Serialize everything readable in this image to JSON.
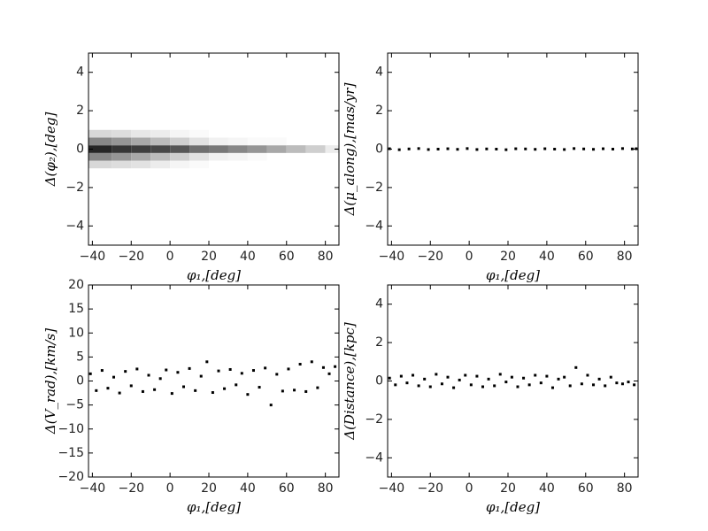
{
  "chart_data": [
    {
      "type": "hist2d",
      "xlabel": "φ₁,[deg]",
      "ylabel": "Δ(φ₂),[deg]",
      "xlim": [
        -42,
        87
      ],
      "ylim": [
        -5,
        5
      ],
      "xticks": [
        {
          "value": -40,
          "label": "−40"
        },
        {
          "value": -20,
          "label": "−20"
        },
        0,
        20,
        40,
        60,
        80
      ],
      "yticks": [
        {
          "value": -4,
          "label": "−4"
        },
        {
          "value": -2,
          "label": "−2"
        },
        0,
        2,
        4
      ],
      "xbins": [
        -42,
        -30,
        -20,
        -10,
        0,
        10,
        20,
        30,
        40,
        50,
        60,
        70,
        80,
        87
      ],
      "ybins": [
        -1,
        -0.6,
        -0.2,
        0.2,
        0.6,
        1
      ],
      "counts": [
        [
          8,
          7,
          6,
          4,
          2,
          1,
          0,
          0,
          0,
          0,
          0,
          0,
          0
        ],
        [
          25,
          22,
          18,
          14,
          10,
          6,
          3,
          2,
          1,
          0,
          0,
          0,
          0
        ],
        [
          45,
          42,
          40,
          38,
          35,
          30,
          28,
          25,
          22,
          18,
          14,
          10,
          4
        ],
        [
          25,
          22,
          18,
          14,
          10,
          6,
          3,
          2,
          1,
          1,
          0,
          0,
          0
        ],
        [
          8,
          7,
          5,
          4,
          2,
          1,
          0,
          0,
          0,
          0,
          0,
          0,
          0
        ]
      ],
      "color": "#000000"
    },
    {
      "type": "scatter",
      "xlabel": "φ₁,[deg]",
      "ylabel": "Δ(μ_along),[mas/yr]",
      "xlim": [
        -42,
        87
      ],
      "ylim": [
        -5,
        5
      ],
      "xticks": [
        {
          "value": -40,
          "label": "−40"
        },
        {
          "value": -20,
          "label": "−20"
        },
        0,
        20,
        40,
        60,
        80
      ],
      "yticks": [
        {
          "value": -4,
          "label": "−4"
        },
        {
          "value": -2,
          "label": "−2"
        },
        0,
        2,
        4
      ],
      "x": [
        -41,
        -36,
        -31,
        -26,
        -21,
        -16,
        -11,
        -6,
        -1,
        4,
        9,
        14,
        19,
        24,
        29,
        34,
        39,
        44,
        49,
        54,
        59,
        64,
        69,
        74,
        79,
        84,
        86
      ],
      "values": [
        0.02,
        -0.03,
        0.01,
        0.03,
        -0.02,
        0,
        0.02,
        -0.01,
        0.03,
        -0.02,
        0.01,
        0,
        -0.03,
        0.02,
        0.01,
        -0.01,
        0.02,
        0,
        -0.02,
        0.03,
        0.01,
        -0.01,
        0.02,
        0,
        0.03,
        0.01,
        0.02
      ],
      "color": "#000000"
    },
    {
      "type": "scatter",
      "xlabel": "φ₁,[deg]",
      "ylabel": "Δ(V_rad),[km/s]",
      "xlim": [
        -42,
        87
      ],
      "ylim": [
        -20,
        20
      ],
      "xticks": [
        {
          "value": -40,
          "label": "−40"
        },
        {
          "value": -20,
          "label": "−20"
        },
        0,
        20,
        40,
        60,
        80
      ],
      "yticks": [
        {
          "value": -20,
          "label": "−20"
        },
        {
          "value": -15,
          "label": "−15"
        },
        {
          "value": -10,
          "label": "−10"
        },
        {
          "value": -5,
          "label": "−5"
        },
        0,
        5,
        10,
        15,
        20
      ],
      "x": [
        -41,
        -38,
        -35,
        -32,
        -29,
        -26,
        -23,
        -20,
        -17,
        -14,
        -11,
        -8,
        -5,
        -2,
        1,
        4,
        7,
        10,
        13,
        16,
        19,
        22,
        25,
        28,
        31,
        34,
        37,
        40,
        43,
        46,
        49,
        52,
        55,
        58,
        61,
        64,
        67,
        70,
        73,
        76,
        79,
        82,
        85
      ],
      "values": [
        1.5,
        -2,
        2.2,
        -1.5,
        0.8,
        -2.5,
        2,
        -1,
        2.5,
        -2.2,
        1.2,
        -1.8,
        0.5,
        2.3,
        -2.6,
        1.8,
        -1.2,
        2.6,
        -2,
        1,
        4,
        -2.4,
        2.1,
        -1.6,
        2.4,
        -0.8,
        1.6,
        -2.8,
        2.2,
        -1.3,
        2.7,
        -5,
        1.4,
        -2.1,
        2.5,
        -1.9,
        3.5,
        -2.2,
        4,
        -1.4,
        2.8,
        1.5,
        3
      ],
      "color": "#000000"
    },
    {
      "type": "scatter",
      "xlabel": "φ₁,[deg]",
      "ylabel": "Δ(Distance),[kpc]",
      "xlim": [
        -42,
        87
      ],
      "ylim": [
        -5,
        5
      ],
      "xticks": [
        {
          "value": -40,
          "label": "−40"
        },
        {
          "value": -20,
          "label": "−20"
        },
        0,
        20,
        40,
        60,
        80
      ],
      "yticks": [
        {
          "value": -4,
          "label": "−4"
        },
        {
          "value": -2,
          "label": "−2"
        },
        0,
        2,
        4
      ],
      "x": [
        -41,
        -38,
        -35,
        -32,
        -29,
        -26,
        -23,
        -20,
        -17,
        -14,
        -11,
        -8,
        -5,
        -2,
        1,
        4,
        7,
        10,
        13,
        16,
        19,
        22,
        25,
        28,
        31,
        34,
        37,
        40,
        43,
        46,
        49,
        52,
        55,
        58,
        61,
        64,
        67,
        70,
        73,
        76,
        79,
        82,
        85
      ],
      "values": [
        0.15,
        -0.2,
        0.25,
        -0.1,
        0.3,
        -0.25,
        0.1,
        -0.3,
        0.35,
        -0.15,
        0.2,
        -0.35,
        0.05,
        0.3,
        -0.2,
        0.25,
        -0.3,
        0.1,
        -0.25,
        0.35,
        -0.05,
        0.2,
        -0.3,
        0.15,
        -0.2,
        0.3,
        -0.1,
        0.25,
        -0.35,
        0.1,
        0.2,
        -0.25,
        0.7,
        -0.15,
        0.3,
        -0.2,
        0.1,
        -0.25,
        0.2,
        -0.1,
        -0.15,
        -0.05,
        -0.2
      ],
      "color": "#000000"
    }
  ]
}
